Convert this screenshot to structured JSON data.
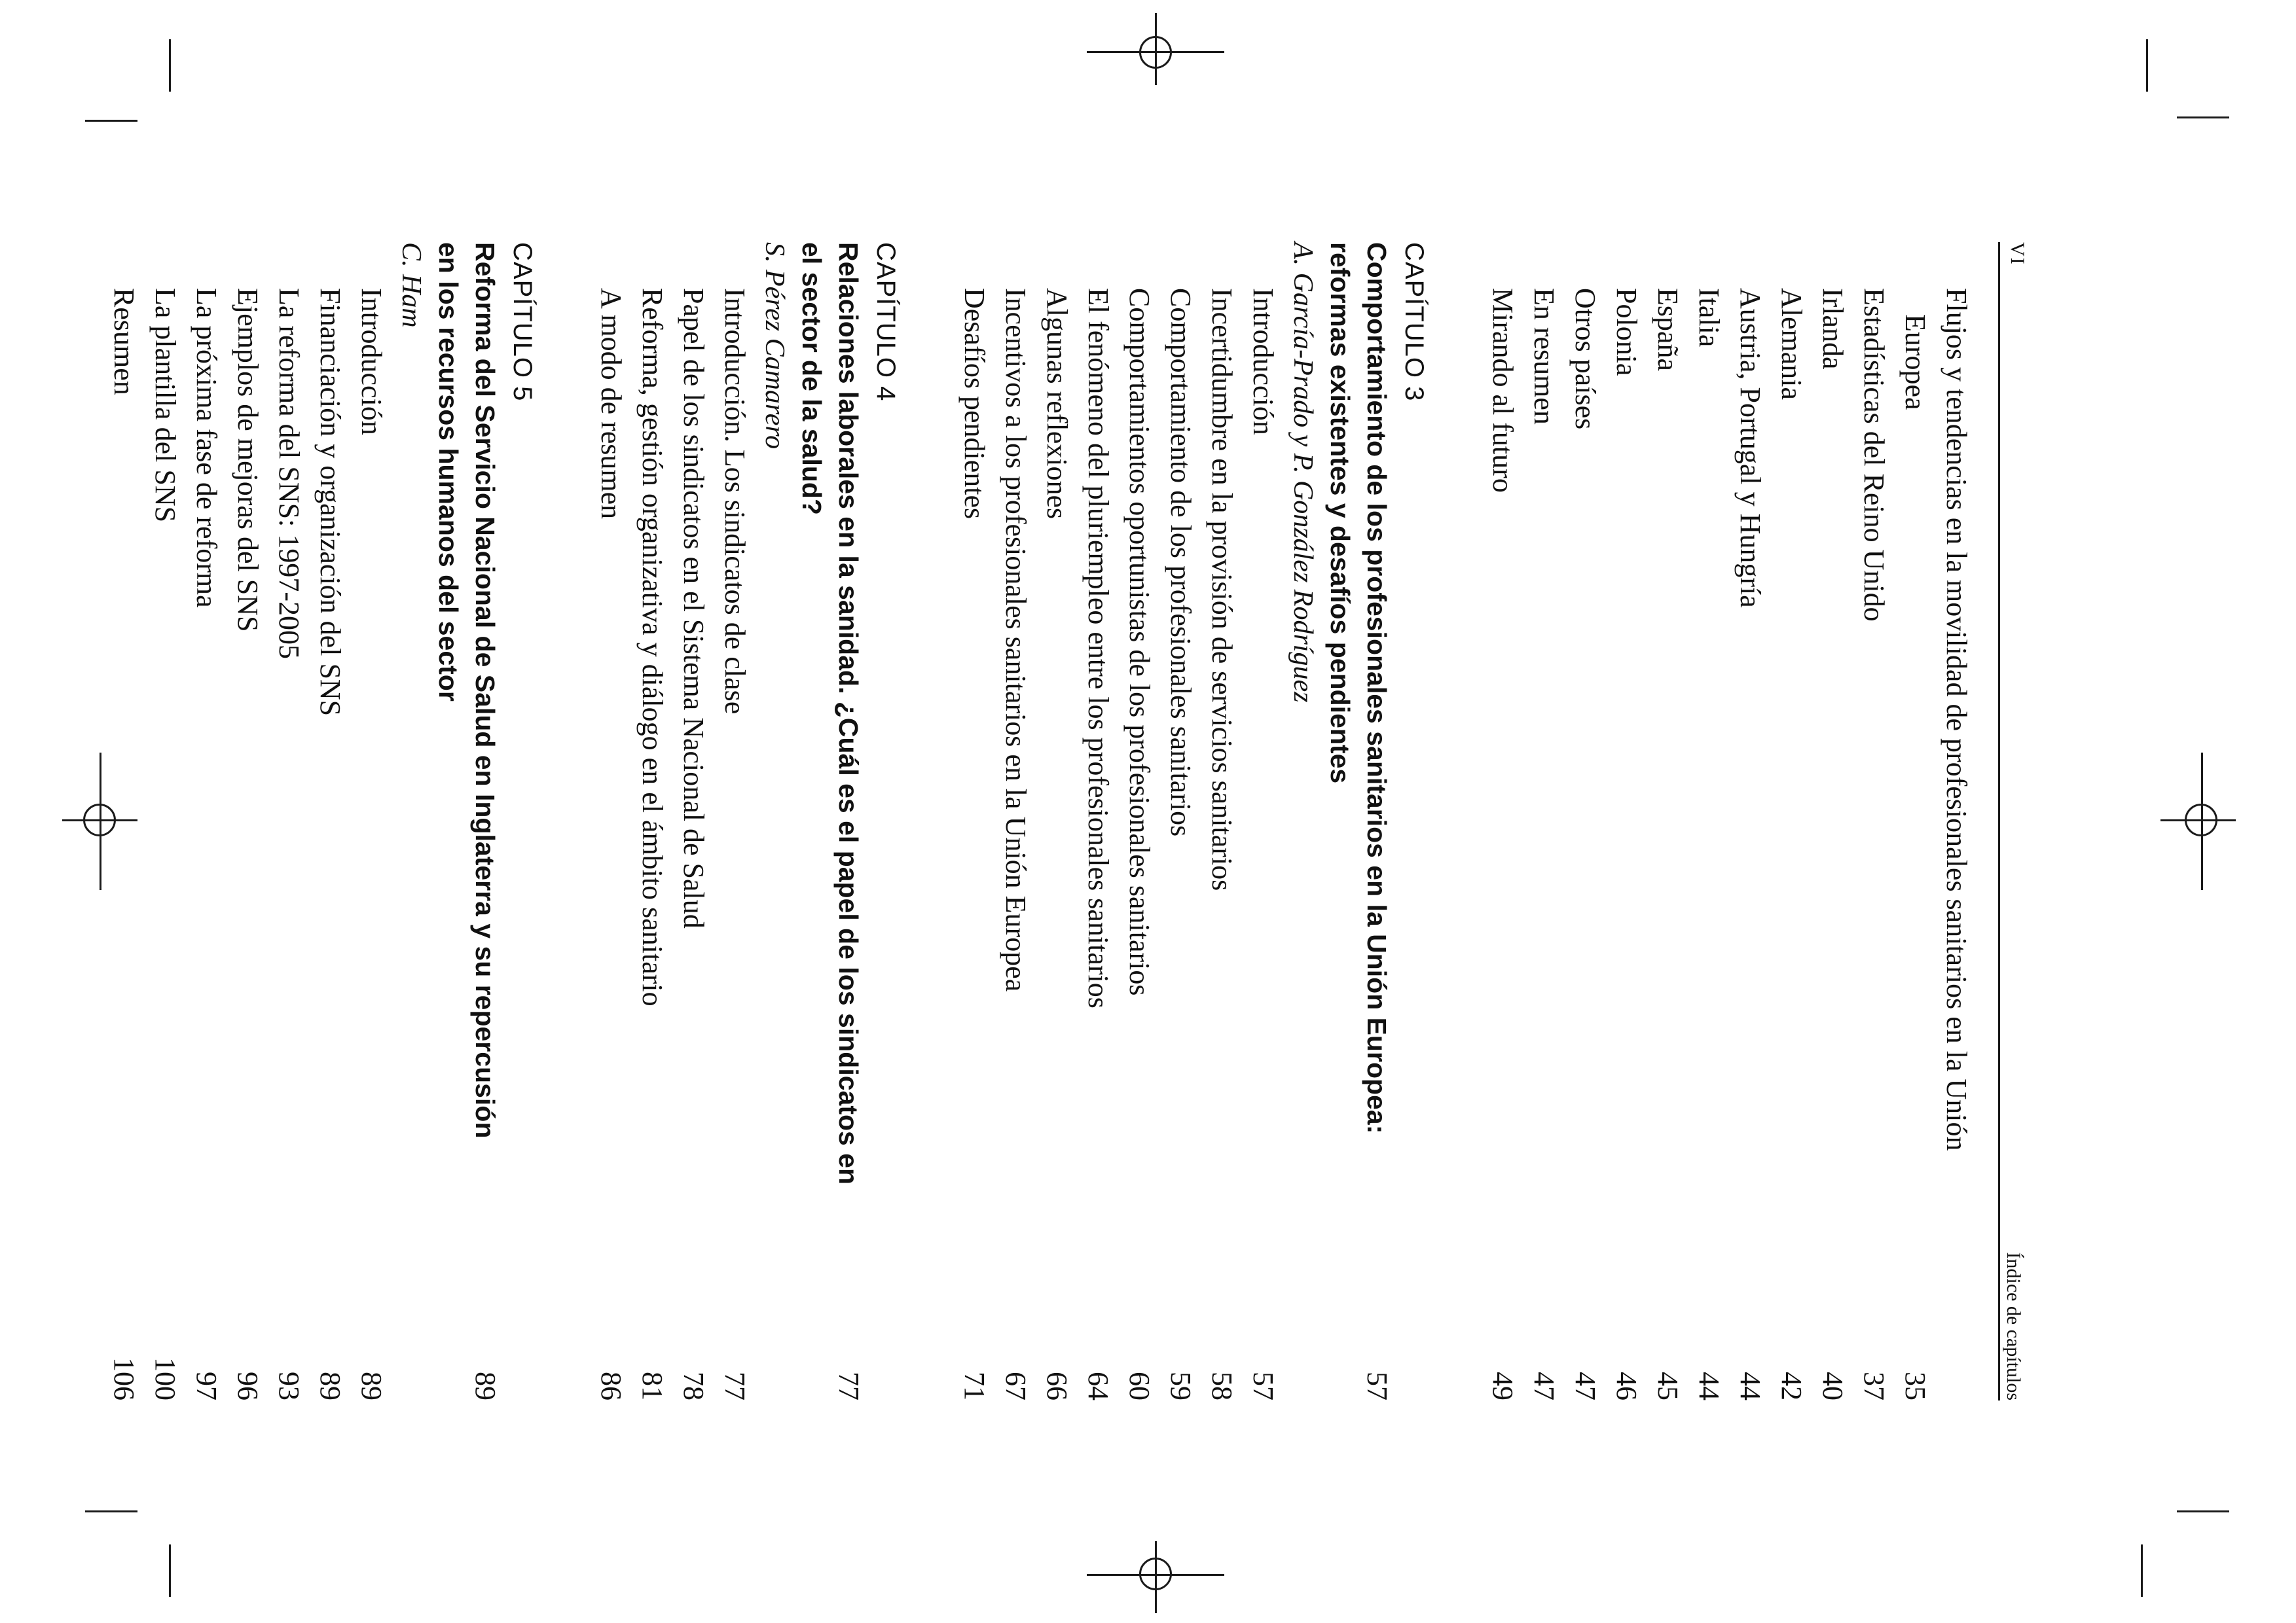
{
  "page": {
    "folio": "VI",
    "running_head": "Índice de capítulos"
  },
  "continued_entries": [
    {
      "title": "Flujos y tendencias en la movilidad de profesionales sanitarios en la Unión",
      "page": ""
    },
    {
      "title": "Europea",
      "page": "35"
    },
    {
      "title": "Estadísticas del Reino Unido",
      "page": "37"
    },
    {
      "title": "Irlanda",
      "page": "40"
    },
    {
      "title": "Alemania",
      "page": "42"
    },
    {
      "title": "Austria, Portugal y Hungría",
      "page": "44"
    },
    {
      "title": "Italia",
      "page": "44"
    },
    {
      "title": "España",
      "page": "45"
    },
    {
      "title": "Polonia",
      "page": "46"
    },
    {
      "title": "Otros países",
      "page": "47"
    },
    {
      "title": "En resumen",
      "page": "47"
    },
    {
      "title": "Mirando al futuro",
      "page": "49"
    }
  ],
  "chapters": [
    {
      "label": "CAPÍTULO 3",
      "title_lines": [
        "Comportamiento de los profesionales sanitarios en la Unión Europea:",
        "reformas existentes y desafíos pendientes"
      ],
      "page": "57",
      "authors": "A. García-Prado y P. González Rodríguez",
      "entries": [
        {
          "title": "Introducción",
          "page": "57"
        },
        {
          "title": "Incertidumbre en la provisión de servicios sanitarios",
          "page": "58"
        },
        {
          "title": "Comportamiento de los profesionales sanitarios",
          "page": "59"
        },
        {
          "title": "Comportamientos oportunistas de los profesionales sanitarios",
          "page": "60"
        },
        {
          "title": "El fenómeno del pluriempleo entre los profesionales sanitarios",
          "page": "64"
        },
        {
          "title": "Algunas reflexiones",
          "page": "66"
        },
        {
          "title": "Incentivos a los profesionales sanitarios en la Unión Europea",
          "page": "67"
        },
        {
          "title": "Desafíos pendientes",
          "page": "71"
        }
      ]
    },
    {
      "label": "CAPÍTULO 4",
      "title_lines": [
        "Relaciones laborales en la sanidad. ¿Cuál es el papel de los sindicatos en",
        "el sector de la salud?"
      ],
      "page": "77",
      "authors": "S. Pérez Camarero",
      "entries": [
        {
          "title": "Introducción. Los sindicatos de clase",
          "page": "77"
        },
        {
          "title": "Papel de los sindicatos en el Sistema Nacional de Salud",
          "page": "78"
        },
        {
          "title": "Reforma, gestión organizativa y diálogo en el ámbito sanitario",
          "page": "81"
        },
        {
          "title": "A modo de resumen",
          "page": "86"
        }
      ]
    },
    {
      "label": "CAPÍTULO 5",
      "title_lines": [
        "Reforma del Servicio Nacional de Salud en Inglaterra y su repercusión",
        "en los recursos humanos del sector"
      ],
      "page": "89",
      "authors": "C. Ham",
      "entries": [
        {
          "title": "Introducción",
          "page": "89"
        },
        {
          "title": "Financiación y organización del SNS",
          "page": "89"
        },
        {
          "title": "La reforma del SNS: 1997-2005",
          "page": "93"
        },
        {
          "title": "Ejemplos de mejoras del SNS",
          "page": "96"
        },
        {
          "title": "La próxima fase de reforma",
          "page": "97"
        },
        {
          "title": "La plantilla del SNS",
          "page": "100"
        },
        {
          "title": "Resumen",
          "page": "106"
        }
      ]
    }
  ]
}
